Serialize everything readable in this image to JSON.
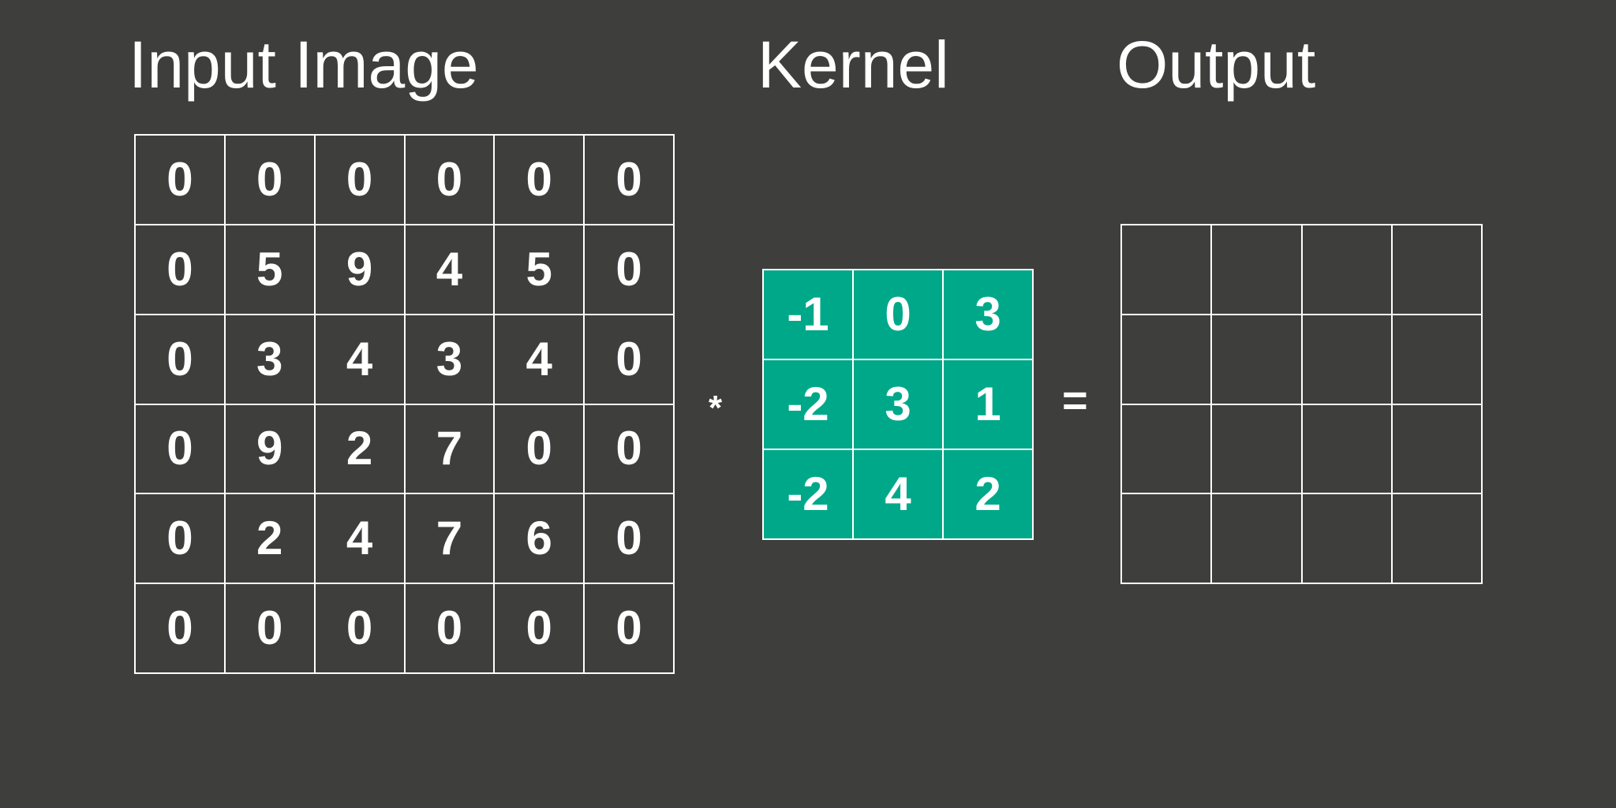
{
  "titles": {
    "input": "Input Image",
    "kernel": "Kernel",
    "output": "Output"
  },
  "input_image": [
    [
      "0",
      "0",
      "0",
      "0",
      "0",
      "0"
    ],
    [
      "0",
      "5",
      "9",
      "4",
      "5",
      "0"
    ],
    [
      "0",
      "3",
      "4",
      "3",
      "4",
      "0"
    ],
    [
      "0",
      "9",
      "2",
      "7",
      "0",
      "0"
    ],
    [
      "0",
      "2",
      "4",
      "7",
      "6",
      "0"
    ],
    [
      "0",
      "0",
      "0",
      "0",
      "0",
      "0"
    ]
  ],
  "kernel": [
    [
      "-1",
      "0",
      "3"
    ],
    [
      "-2",
      "3",
      "1"
    ],
    [
      "-2",
      "4",
      "2"
    ]
  ],
  "output": [
    [
      "",
      "",
      "",
      ""
    ],
    [
      "",
      "",
      "",
      ""
    ],
    [
      "",
      "",
      "",
      ""
    ],
    [
      "",
      "",
      "",
      ""
    ]
  ],
  "operators": {
    "convolution": "*",
    "equals": "="
  },
  "colors": {
    "background": "#3e3f3d",
    "kernel_fill": "#00a88a",
    "lines": "#ffffff"
  }
}
